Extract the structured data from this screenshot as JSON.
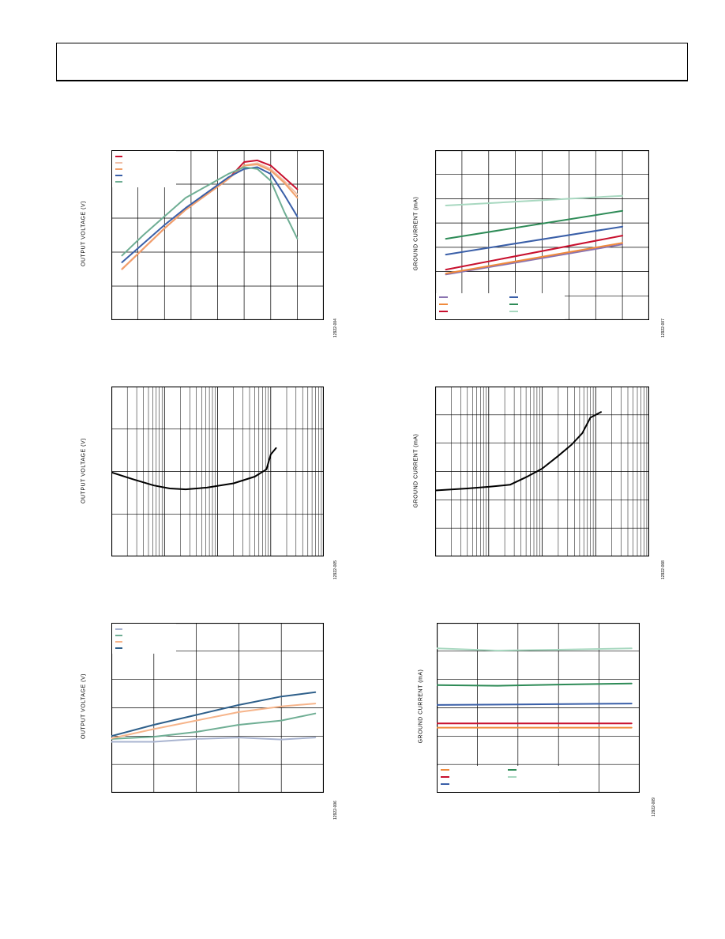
{
  "chart_data": [
    {
      "type": "line",
      "id": "p1",
      "ylabel": "OUTPUT VOLTAGE (V)",
      "figure_id": "12922-004",
      "xlim": [
        0,
        8
      ],
      "ylim": [
        0,
        5
      ],
      "xscale": "linear",
      "xgrid": 8,
      "ygrid": 5,
      "legend": "top-left",
      "series": [
        {
          "color": "#c8102e",
          "x": [
            0.4,
            1.2,
            2.0,
            2.8,
            3.6,
            4.4,
            5.0,
            5.5,
            6.0,
            6.5,
            7.0
          ],
          "y": [
            1.5,
            2.1,
            2.7,
            3.25,
            3.7,
            4.15,
            4.65,
            4.7,
            4.55,
            4.2,
            3.85
          ]
        },
        {
          "color": "#f0c0a8",
          "x": [
            0.4,
            1.2,
            2.0,
            2.8,
            3.6,
            4.4,
            5.0,
            5.5,
            6.0,
            6.5,
            7.0
          ],
          "y": [
            1.5,
            2.1,
            2.7,
            3.25,
            3.7,
            4.15,
            4.55,
            4.62,
            4.45,
            4.1,
            3.7
          ]
        },
        {
          "color": "#f2a06a",
          "x": [
            0.4,
            1.2,
            2.0,
            2.8,
            3.6,
            4.4,
            5.0,
            5.5,
            6.0,
            6.5,
            7.0
          ],
          "y": [
            1.5,
            2.1,
            2.7,
            3.25,
            3.7,
            4.15,
            4.55,
            4.58,
            4.4,
            4.05,
            3.6
          ]
        },
        {
          "color": "#3a5fa8",
          "x": [
            0.4,
            1.2,
            2.0,
            2.8,
            3.6,
            4.4,
            5.0,
            5.5,
            6.0,
            6.5,
            7.0
          ],
          "y": [
            1.7,
            2.25,
            2.8,
            3.3,
            3.75,
            4.2,
            4.45,
            4.5,
            4.3,
            3.7,
            3.05
          ]
        },
        {
          "color": "#6fae94",
          "x": [
            0.4,
            1.2,
            2.0,
            2.8,
            3.6,
            4.4,
            5.0,
            5.5,
            6.0,
            6.5,
            7.0
          ],
          "y": [
            1.9,
            2.5,
            3.05,
            3.6,
            3.95,
            4.3,
            4.5,
            4.45,
            4.1,
            3.2,
            2.4
          ]
        }
      ]
    },
    {
      "type": "line",
      "id": "p2",
      "ylabel": "GROUND CURRENT (mA)",
      "figure_id": "12922-007",
      "xlim": [
        0,
        8
      ],
      "ylim": [
        0,
        7
      ],
      "xscale": "linear",
      "xgrid": 8,
      "ygrid": 7,
      "legend": "bottom-left",
      "series": [
        {
          "color": "#8a73b0",
          "x": [
            0.4,
            7.0
          ],
          "y": [
            1.88,
            3.12
          ]
        },
        {
          "color": "#f08a3c",
          "x": [
            0.4,
            7.0
          ],
          "y": [
            1.92,
            3.18
          ]
        },
        {
          "color": "#c8102e",
          "x": [
            0.4,
            7.0
          ],
          "y": [
            2.08,
            3.48
          ]
        },
        {
          "color": "#3a5fa8",
          "x": [
            0.4,
            7.0
          ],
          "y": [
            2.7,
            3.85
          ]
        },
        {
          "color": "#2e8b57",
          "x": [
            0.4,
            7.0
          ],
          "y": [
            3.35,
            4.5
          ]
        },
        {
          "color": "#a8d8c0",
          "x": [
            0.4,
            7.0
          ],
          "y": [
            4.72,
            5.12
          ]
        }
      ]
    },
    {
      "type": "line",
      "id": "p3",
      "ylabel": "OUTPUT VOLTAGE (V)",
      "figure_id": "12922-005",
      "xlim": [
        0,
        4
      ],
      "ylim": [
        0,
        4
      ],
      "xscale": "log",
      "ygrid": 4,
      "series": [
        {
          "color": "#000000",
          "x": [
            0,
            0.4,
            0.8,
            1.1,
            1.4,
            1.8,
            2.3,
            2.7,
            2.92,
            3.0,
            3.1
          ],
          "y": [
            1.98,
            1.82,
            1.67,
            1.6,
            1.58,
            1.62,
            1.72,
            1.88,
            2.05,
            2.4,
            2.55
          ]
        }
      ]
    },
    {
      "type": "line",
      "id": "p4",
      "ylabel": "GROUND CURRENT (mA)",
      "figure_id": "12922-008",
      "xlim": [
        0,
        4
      ],
      "ylim": [
        0,
        6
      ],
      "xscale": "log",
      "ygrid": 6,
      "series": [
        {
          "color": "#000000",
          "x": [
            0,
            0.6,
            1.0,
            1.4,
            1.7,
            2.0,
            2.3,
            2.55,
            2.75,
            2.9,
            3.1
          ],
          "y": [
            2.33,
            2.4,
            2.46,
            2.53,
            2.8,
            3.1,
            3.55,
            3.95,
            4.35,
            4.9,
            5.1
          ]
        }
      ]
    },
    {
      "type": "line",
      "id": "p5",
      "ylabel": "OUTPUT VOLTAGE (V)",
      "figure_id": "12922-006",
      "xlim": [
        0,
        5
      ],
      "ylim": [
        0,
        6
      ],
      "xscale": "linear",
      "xgrid": 5,
      "ygrid": 6,
      "legend": "top-left",
      "series": [
        {
          "color": "#a9b4d0",
          "x": [
            0,
            1.0,
            2.0,
            3.0,
            4.0,
            4.8
          ],
          "y": [
            1.8,
            1.8,
            1.9,
            1.95,
            1.88,
            1.95
          ]
        },
        {
          "color": "#6fae94",
          "x": [
            0,
            1.0,
            2.0,
            3.0,
            4.0,
            4.8
          ],
          "y": [
            1.9,
            1.98,
            2.15,
            2.4,
            2.55,
            2.8
          ]
        },
        {
          "color": "#f6b48a",
          "x": [
            0,
            1.0,
            2.0,
            3.0,
            4.0,
            4.8
          ],
          "y": [
            1.92,
            2.25,
            2.55,
            2.85,
            3.05,
            3.15
          ]
        },
        {
          "color": "#2e5f8a",
          "x": [
            0,
            1.0,
            2.0,
            3.0,
            4.0,
            4.8
          ],
          "y": [
            2.0,
            2.4,
            2.75,
            3.1,
            3.4,
            3.55
          ]
        }
      ]
    },
    {
      "type": "line",
      "id": "p6",
      "ylabel": "GROUND CURRENT (mA)",
      "figure_id": "12922-009",
      "xlim": [
        0,
        5
      ],
      "ylim": [
        0,
        6
      ],
      "xscale": "linear",
      "xgrid": 5,
      "ygrid": 6,
      "legend": "bottom-left",
      "series": [
        {
          "color": "#f08a3c",
          "x": [
            0,
            4.8
          ],
          "y": [
            2.3,
            2.3
          ]
        },
        {
          "color": "#c8102e",
          "x": [
            0,
            4.8
          ],
          "y": [
            2.45,
            2.45
          ]
        },
        {
          "color": "#3a5fa8",
          "x": [
            0,
            2.0,
            4.8
          ],
          "y": [
            3.1,
            3.12,
            3.15
          ]
        },
        {
          "color": "#2e8b57",
          "x": [
            0,
            1.5,
            3.0,
            4.8
          ],
          "y": [
            3.8,
            3.78,
            3.82,
            3.86
          ]
        },
        {
          "color": "#a8d8c0",
          "x": [
            0,
            1.5,
            3.0,
            4.8
          ],
          "y": [
            5.1,
            5.02,
            5.05,
            5.1
          ]
        }
      ]
    }
  ]
}
